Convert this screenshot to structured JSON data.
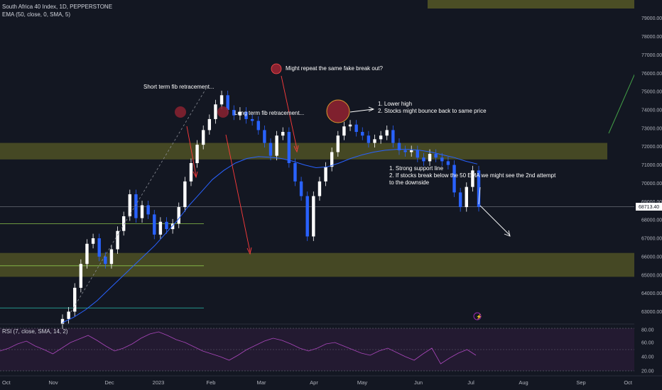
{
  "header": {
    "title": "South Africa 40 Index, 1D, PEPPERSTONE",
    "indicator": "EMA (50, close, 0, SMA, 5)"
  },
  "rsi": {
    "label": "RSI (7, close, SMA, 14, 2)",
    "ticks": [
      "80.00",
      "60.00",
      "40.00",
      "20.00"
    ]
  },
  "price_tag": "68713.40",
  "annotations": {
    "short_fib": "Short term fib retracement...",
    "long_fib": "Long term fib retracement...",
    "fake_break": "Might repeat the same fake break out?",
    "lower_high_1": "1. Lower high",
    "lower_high_2": "2. Stocks might bounce back to same price",
    "support_1": "1. Strong support line",
    "support_2": "2. If stocks break below the 50 EMA we might see the 2nd attempt",
    "support_3": "to the downside"
  },
  "colors": {
    "background": "#131722",
    "up": "#ffffff",
    "down": "#2962ff",
    "zone": "#4b4e25",
    "ema": "#2962ff",
    "rsi": "#7e2c8e",
    "arrow_red": "#ff3b3b",
    "arrow_green": "#43a047"
  },
  "chart_data": {
    "type": "candlestick",
    "title": "South Africa 40 Index, 1D, PEPPERSTONE",
    "x_ticks": [
      "Oct",
      "Nov",
      "Dec",
      "2023",
      "Feb",
      "Mar",
      "Apr",
      "May",
      "Jun",
      "Jul",
      "Aug",
      "Sep",
      "Oct"
    ],
    "y_ticks": [
      79000,
      78000,
      77000,
      76000,
      75000,
      74000,
      73000,
      72000,
      71000,
      70000,
      69000,
      68000,
      67000,
      66000,
      65000,
      64000,
      63000
    ],
    "ylim": [
      62400,
      79800
    ],
    "last_price": 68713.4,
    "resistance_zone": [
      71300,
      72200
    ],
    "support_zone": [
      64900,
      66200
    ],
    "top_zone": [
      79600,
      80000
    ],
    "horizontal_levels": [
      67800,
      65500,
      63200
    ],
    "closes": [
      62600,
      63000,
      64300,
      65600,
      66700,
      67000,
      66000,
      65600,
      66400,
      67400,
      68200,
      69400,
      68100,
      68800,
      68300,
      67200,
      67900,
      67500,
      67800,
      68700,
      70100,
      71100,
      72100,
      72900,
      73500,
      74300,
      74800,
      74000,
      73700,
      73900,
      73500,
      73400,
      72900,
      72200,
      71500,
      72600,
      72800,
      71100,
      70100,
      69300,
      67100,
      69300,
      70100,
      70900,
      71700,
      72600,
      73100,
      73200,
      72800,
      72600,
      72200,
      72400,
      72600,
      72900,
      72200,
      71800,
      71700,
      71800,
      71400,
      71200,
      71600,
      71400,
      71200,
      71000,
      69500,
      68700,
      69800,
      70700,
      68713
    ],
    "ema50": [
      62400,
      62700,
      63100,
      63600,
      64200,
      64800,
      65400,
      66000,
      66600,
      67300,
      68000,
      68800,
      69500,
      70200,
      70700,
      71100,
      71350,
      71450,
      71420,
      71350,
      71200,
      71000,
      70850,
      70900,
      71100,
      71350,
      71550,
      71700,
      71800,
      71850,
      71850,
      71800,
      71700,
      71550,
      71400,
      71200,
      71050
    ],
    "rsi": [
      48,
      52,
      58,
      62,
      55,
      50,
      44,
      52,
      60,
      65,
      70,
      63,
      55,
      48,
      52,
      58,
      66,
      72,
      75,
      70,
      64,
      60,
      54,
      48,
      44,
      40,
      35,
      42,
      50,
      56,
      62,
      66,
      63,
      58,
      52,
      48,
      52,
      58,
      60,
      55,
      50,
      45,
      42,
      48,
      52,
      46,
      40,
      35,
      44,
      52,
      30,
      38,
      45,
      50,
      42
    ]
  }
}
